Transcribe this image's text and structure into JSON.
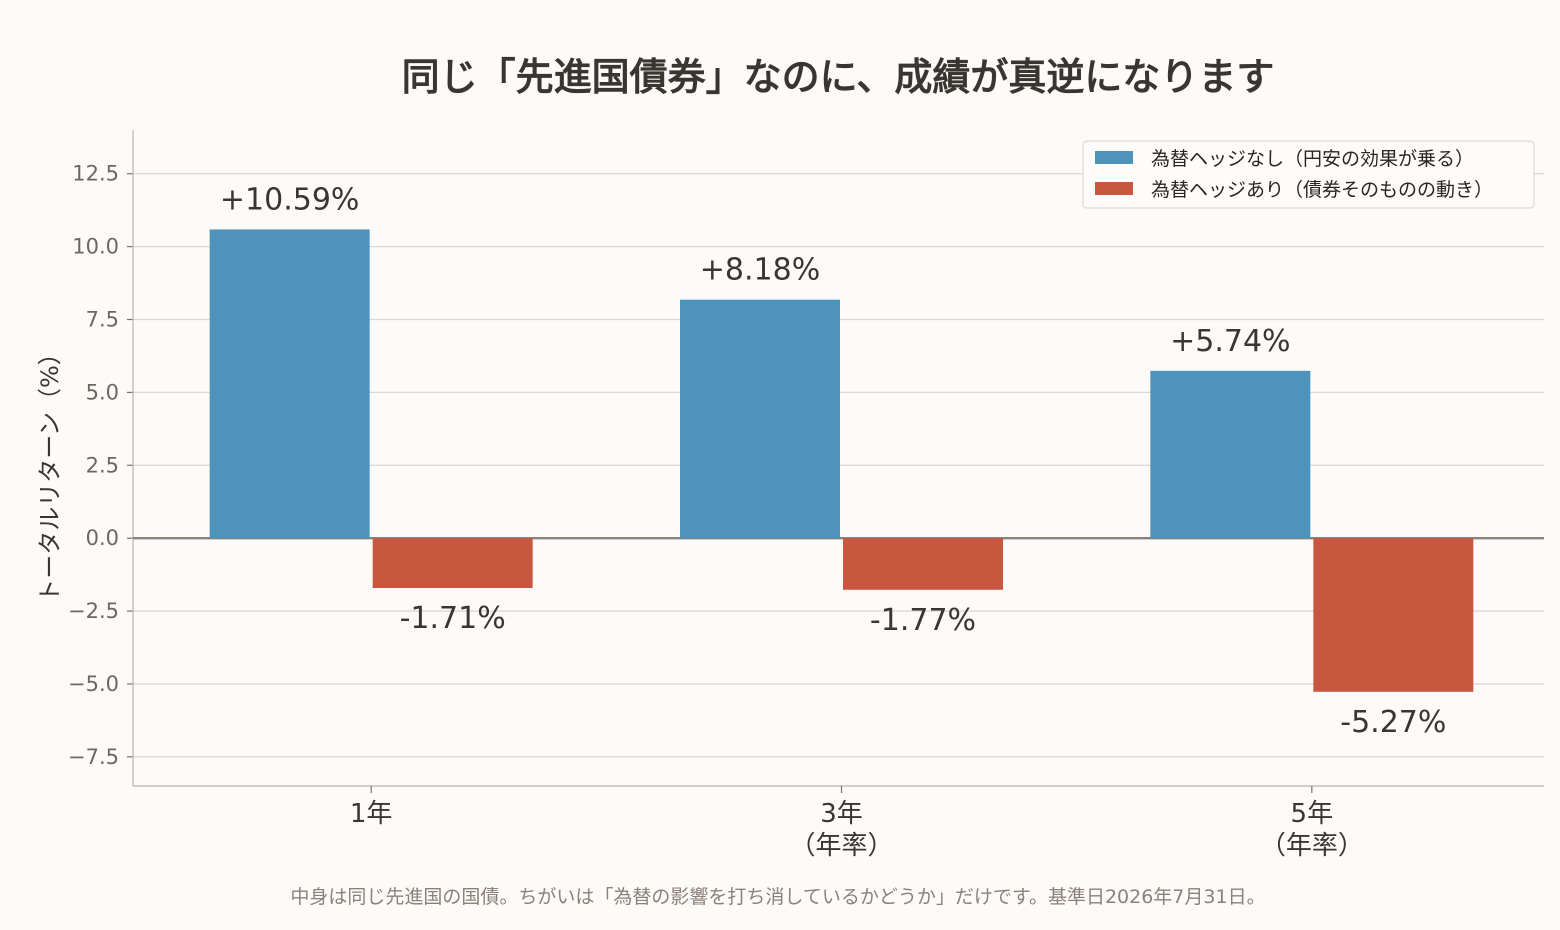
{
  "title": "同じ「先進国債券」なのに、成績が真逆になります",
  "footnote": "中身は同じ先進国の国債。ちがいは「為替の影響を打ち消しているかどうか」だけです。基準日2026年7月31日。",
  "chart_data": {
    "type": "bar",
    "categories": [
      [
        "1年"
      ],
      [
        "3年",
        "（年率）"
      ],
      [
        "5年",
        "（年率）"
      ]
    ],
    "series": [
      {
        "name": "為替ヘッジなし（円安の効果が乗る）",
        "color": "#4d93bc",
        "values": [
          10.59,
          8.18,
          5.74
        ],
        "labels": [
          "+10.59%",
          "+8.18%",
          "+5.74%"
        ]
      },
      {
        "name": "為替ヘッジあり（債券そのものの動き）",
        "color": "#c9573f",
        "values": [
          -1.71,
          -1.77,
          -5.27
        ],
        "labels": [
          "-1.71%",
          "-1.77%",
          "-5.27%"
        ]
      }
    ],
    "ylabel": "トータルリターン（%）",
    "xlabel": "",
    "ylim": [
      -8.5,
      14.0
    ],
    "yticks": [
      12.5,
      10.0,
      7.5,
      5.0,
      2.5,
      0.0,
      -2.5,
      -5.0,
      -7.5
    ],
    "ytick_labels": [
      "12.5",
      "10.0",
      "7.5",
      "5.0",
      "2.5",
      "0.0",
      "−2.5",
      "−5.0",
      "−7.5"
    ],
    "grid": true,
    "legend_position": "top-right"
  }
}
